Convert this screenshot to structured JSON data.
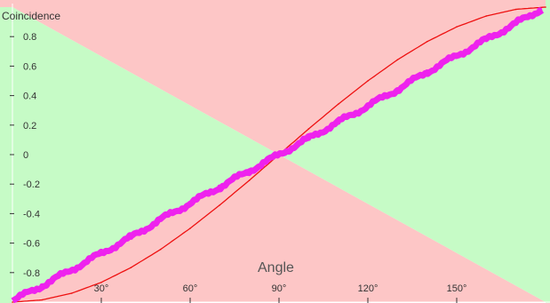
{
  "chart_data": {
    "type": "line",
    "xlabel": "Angle",
    "ylabel": "Coincidence",
    "xlim": [
      0,
      180
    ],
    "ylim": [
      -1,
      1
    ],
    "x_ticks": [
      {
        "value": 30,
        "label": "30°"
      },
      {
        "value": 60,
        "label": "60°"
      },
      {
        "value": 90,
        "label": "90°"
      },
      {
        "value": 120,
        "label": "120°"
      },
      {
        "value": 150,
        "label": "150°"
      }
    ],
    "y_ticks": [
      {
        "value": 0.8,
        "label": "0.8"
      },
      {
        "value": 0.6,
        "label": "0.6"
      },
      {
        "value": 0.4,
        "label": "0.4"
      },
      {
        "value": 0.2,
        "label": "0.2"
      },
      {
        "value": 0,
        "label": "0"
      },
      {
        "value": -0.2,
        "label": "-0.2"
      },
      {
        "value": -0.4,
        "label": "-0.4"
      },
      {
        "value": -0.6,
        "label": "-0.6"
      },
      {
        "value": -0.8,
        "label": "-0.8"
      }
    ],
    "regions": {
      "correct_color": "#c6fbc6",
      "incorrect_color": "#fdc6c6"
    },
    "series": [
      {
        "color": "#ee1111",
        "style": "thin-line",
        "x": [
          0,
          10,
          20,
          30,
          40,
          50,
          60,
          70,
          80,
          90,
          100,
          110,
          120,
          130,
          140,
          150,
          160,
          170,
          180
        ],
        "y": [
          -1.0,
          -0.985,
          -0.94,
          -0.866,
          -0.766,
          -0.643,
          -0.5,
          -0.342,
          -0.174,
          0.0,
          0.174,
          0.342,
          0.5,
          0.643,
          0.766,
          0.866,
          0.94,
          0.985,
          1.0
        ]
      },
      {
        "color": "#ee22ee",
        "style": "thick-noisy-line",
        "x": [
          1,
          10,
          20,
          30,
          40,
          50,
          60,
          70,
          80,
          90,
          100,
          110,
          120,
          130,
          140,
          150,
          160,
          170,
          178
        ],
        "y": [
          -0.98,
          -0.89,
          -0.78,
          -0.67,
          -0.56,
          -0.44,
          -0.33,
          -0.22,
          -0.11,
          0.0,
          0.11,
          0.22,
          0.33,
          0.44,
          0.56,
          0.67,
          0.78,
          0.89,
          0.98
        ]
      }
    ]
  }
}
